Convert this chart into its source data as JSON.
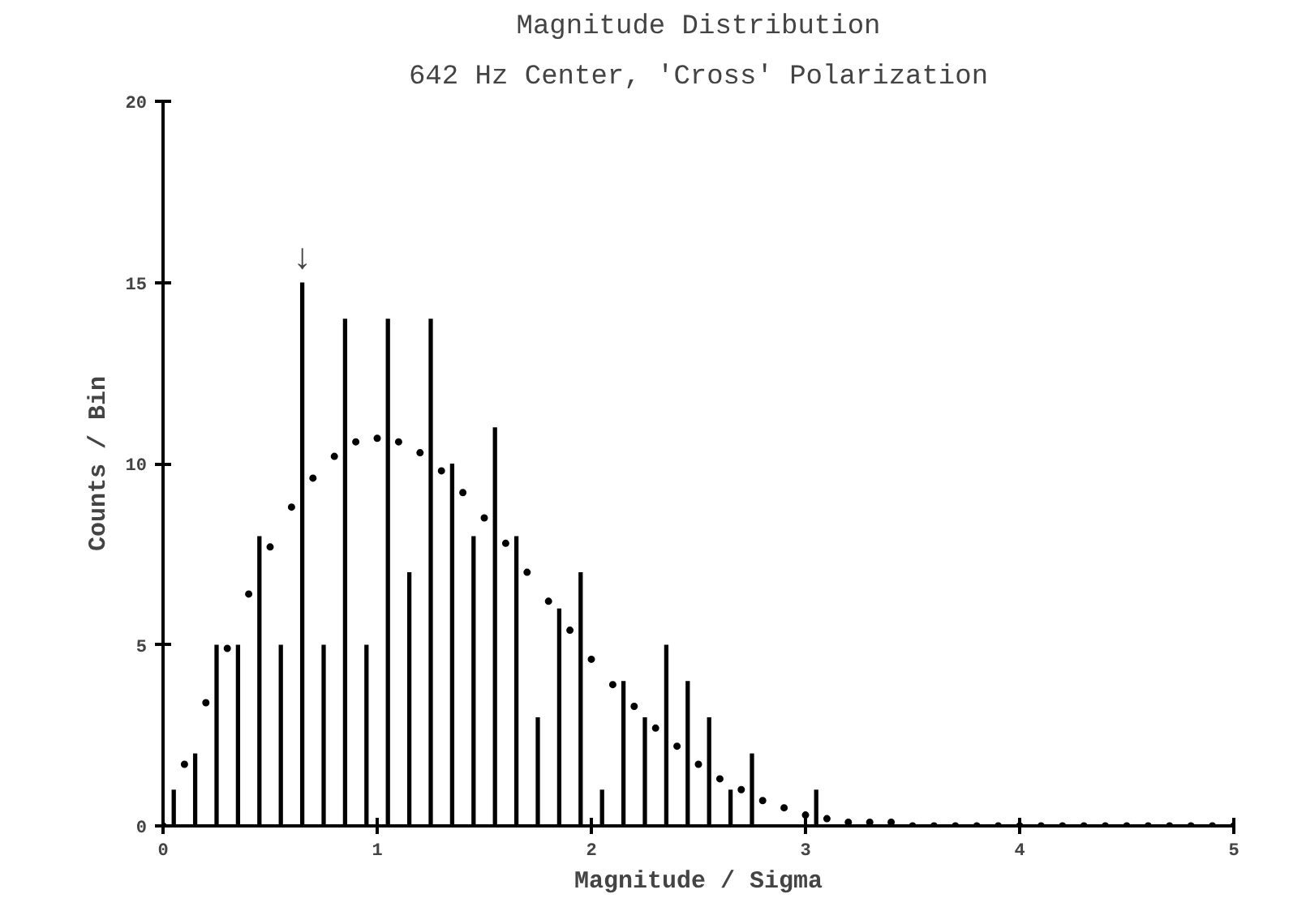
{
  "chart_data": {
    "type": "histogram",
    "title": "Magnitude Distribution",
    "subtitle": "642 Hz Center, 'Cross' Polarization",
    "xlabel": "Magnitude / Sigma",
    "ylabel": "Counts / Bin",
    "annotations": [
      {
        "text": "↓",
        "x": 0.65,
        "y": 15
      }
    ],
    "series": [
      {
        "color": "#000000",
        "bins": [
          0,
          0.1,
          0.2,
          0.3,
          0.4,
          0.5,
          0.6,
          0.7,
          0.8,
          0.9,
          1.0,
          1.1,
          1.2,
          1.3,
          1.4,
          1.5,
          1.6,
          1.7,
          1.8,
          1.9,
          2.0,
          2.1,
          2.2,
          2.3,
          2.4,
          2.5,
          2.6,
          2.7,
          2.8,
          2.9,
          3.0,
          3.1
        ],
        "values": [
          1,
          2,
          5,
          5,
          8,
          5,
          15,
          5,
          14,
          5,
          14,
          7,
          14,
          10,
          8,
          11,
          8,
          3,
          6,
          7,
          1,
          4,
          3,
          5,
          4,
          3,
          1,
          2,
          0,
          0,
          1
        ]
      },
      {
        "type": "scatter",
        "color": "#000000",
        "marker": "circle",
        "x": [
          0,
          0.1,
          0.2,
          0.3,
          0.4,
          0.5,
          0.6,
          0.7,
          0.8,
          0.9,
          1.0,
          1.1,
          1.2,
          1.3,
          1.4,
          1.5,
          1.6,
          1.7,
          1.8,
          1.9,
          2.0,
          2.1,
          2.2,
          2.3,
          2.4,
          2.5,
          2.6,
          2.7,
          2.8,
          2.9,
          3.0,
          3.1,
          3.2,
          3.3,
          3.4,
          3.5,
          3.6,
          3.7,
          3.8,
          3.9,
          4.0,
          4.1,
          4.2,
          4.3,
          4.4,
          4.5,
          4.6,
          4.7,
          4.8,
          4.9,
          5.0
        ],
        "values": [
          0,
          1.7,
          3.4,
          4.9,
          6.4,
          7.7,
          8.8,
          9.6,
          10.2,
          10.6,
          10.7,
          10.6,
          10.3,
          9.8,
          9.2,
          8.5,
          7.8,
          7.0,
          6.2,
          5.4,
          4.6,
          3.9,
          3.3,
          2.7,
          2.2,
          1.7,
          1.3,
          1.0,
          0.7,
          0.5,
          0.3,
          0.2,
          0.1,
          0.1,
          0.1,
          0,
          0,
          0,
          0,
          0,
          0,
          0,
          0,
          0,
          0,
          0,
          0,
          0,
          0,
          0,
          0
        ]
      }
    ],
    "xlim": [
      0,
      5
    ],
    "ylim": [
      0,
      20
    ],
    "xticks": [
      0,
      1,
      2,
      3,
      4,
      5
    ],
    "yticks": [
      0,
      5,
      10,
      15,
      20
    ],
    "grid": false
  }
}
